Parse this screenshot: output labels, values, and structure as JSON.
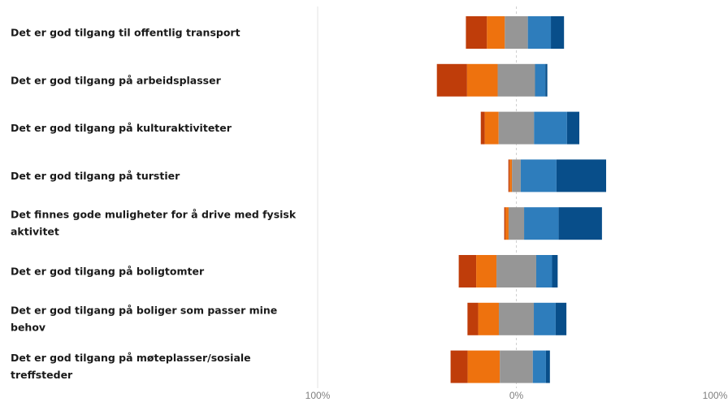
{
  "chart_data": {
    "type": "bar",
    "stacking": "diverging",
    "orientation": "horizontal",
    "xlim": [
      -100,
      100
    ],
    "x_tick_labels": [
      "100%",
      "0%",
      "100%"
    ],
    "grid": false,
    "legend": "none",
    "colors": [
      "#bf3d0a",
      "#ee720e",
      "#969696",
      "#2e7dbc",
      "#084e8a"
    ],
    "categories": [
      [
        "Det er god tilgang til offentlig transport"
      ],
      [
        "Det er god tilgang på arbeidsplasser"
      ],
      [
        "Det er god tilgang på kulturaktiviteter"
      ],
      [
        "Det er god tilgang på turstier"
      ],
      [
        "Det finnes gode muligheter for å drive med fysisk",
        "aktivitet"
      ],
      [
        "Det er god tilgang på boligtomter"
      ],
      [
        "Det er god tilgang på boliger som passer mine",
        "behov"
      ],
      [
        "Det er god tilgang på møteplasser/sosiale",
        "treffsteder"
      ]
    ],
    "series": [
      {
        "values": [
          10.6,
          15.2,
          2.0,
          0.6,
          0.6,
          8.8,
          5.4,
          8.6
        ]
      },
      {
        "values": [
          9.0,
          15.4,
          7.0,
          1.2,
          1.6,
          10.2,
          10.4,
          16.2
        ]
      },
      {
        "values": [
          11.6,
          18.8,
          17.8,
          4.4,
          7.8,
          20.0,
          17.6,
          16.6
        ]
      },
      {
        "values": [
          11.6,
          5.2,
          16.6,
          18.0,
          17.4,
          8.0,
          11.0,
          6.6
        ]
      },
      {
        "values": [
          6.6,
          1.0,
          6.2,
          25.0,
          21.8,
          2.8,
          5.4,
          2.0
        ]
      }
    ]
  }
}
